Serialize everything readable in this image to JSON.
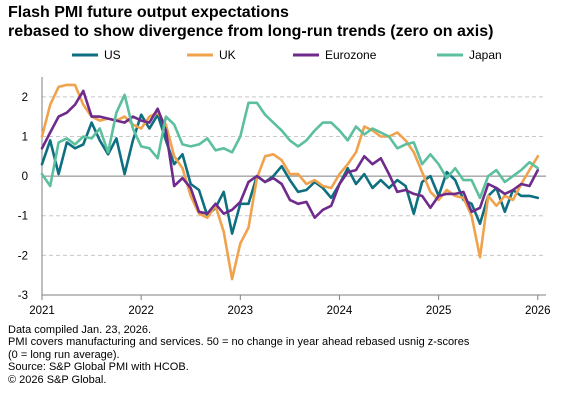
{
  "title_lines": [
    "Flash PMI future output expectations",
    "rebased to show divergence from long-run trends (zero on axis)"
  ],
  "footnotes": [
    "Data compiled Jan. 23, 2026.",
    "PMI covers manufacturing and services. 50 = no change in year ahead rebased usnig z-scores",
    "(0 = long run average).",
    "Source: S&P Global PMI with HCOB.",
    "© 2026 S&P Global."
  ],
  "chart_data": {
    "type": "line",
    "ylim": [
      -3,
      2.5
    ],
    "yticks": [
      2,
      1,
      0,
      -1,
      -2,
      -3
    ],
    "ytick_labels": [
      "2",
      "1",
      "0",
      "-1",
      "-2",
      "-3"
    ],
    "xlim": [
      2021.0,
      2026.083
    ],
    "xticks": [
      2021,
      2022,
      2023,
      2024,
      2025,
      2026
    ],
    "xtick_labels": [
      "2021",
      "2022",
      "2023",
      "2024",
      "2025",
      "2026"
    ],
    "grid": "horizontal dashed",
    "legend_position": "top",
    "series": [
      {
        "name": "US",
        "color": "#0e6f80",
        "x": [
          2021.0,
          2021.083,
          2021.167,
          2021.25,
          2021.333,
          2021.417,
          2021.5,
          2021.583,
          2021.667,
          2021.75,
          2021.833,
          2021.917,
          2022.0,
          2022.083,
          2022.167,
          2022.25,
          2022.333,
          2022.417,
          2022.5,
          2022.583,
          2022.667,
          2022.75,
          2022.833,
          2022.917,
          2023.0,
          2023.083,
          2023.167,
          2023.25,
          2023.333,
          2023.417,
          2023.5,
          2023.583,
          2023.667,
          2023.75,
          2023.833,
          2023.917,
          2024.0,
          2024.083,
          2024.167,
          2024.25,
          2024.333,
          2024.417,
          2024.5,
          2024.583,
          2024.667,
          2024.75,
          2024.833,
          2024.917,
          2025.0,
          2025.083,
          2025.167,
          2025.25,
          2025.333,
          2025.417,
          2025.5,
          2025.583,
          2025.667,
          2025.75,
          2025.833,
          2025.917,
          2026.0
        ],
        "values": [
          0.3,
          0.9,
          0.05,
          0.85,
          0.7,
          0.8,
          1.35,
          0.9,
          0.55,
          0.95,
          0.05,
          0.9,
          1.55,
          1.2,
          1.55,
          0.9,
          0.3,
          0.55,
          -0.2,
          -0.35,
          -1.0,
          -0.8,
          -0.4,
          -1.45,
          -0.7,
          -0.7,
          0.0,
          -0.15,
          0.0,
          0.25,
          -0.1,
          -0.4,
          -0.35,
          -0.15,
          -0.3,
          -0.55,
          -0.2,
          0.2,
          -0.2,
          0.05,
          -0.3,
          -0.1,
          -0.3,
          -0.1,
          -0.25,
          -0.95,
          -0.15,
          0.0,
          -0.5,
          0.1,
          -0.1,
          -0.6,
          -0.7,
          -1.2,
          -0.5,
          -0.3,
          -0.9,
          -0.35,
          -0.5,
          -0.5,
          -0.55
        ]
      },
      {
        "name": "UK",
        "color": "#f0a24c",
        "x": [
          2021.0,
          2021.083,
          2021.167,
          2021.25,
          2021.333,
          2021.417,
          2021.5,
          2021.583,
          2021.667,
          2021.75,
          2021.833,
          2021.917,
          2022.0,
          2022.083,
          2022.167,
          2022.25,
          2022.333,
          2022.417,
          2022.5,
          2022.583,
          2022.667,
          2022.75,
          2022.833,
          2022.917,
          2023.0,
          2023.083,
          2023.167,
          2023.25,
          2023.333,
          2023.417,
          2023.5,
          2023.583,
          2023.667,
          2023.75,
          2023.833,
          2023.917,
          2024.0,
          2024.083,
          2024.167,
          2024.25,
          2024.333,
          2024.417,
          2024.5,
          2024.583,
          2024.667,
          2024.75,
          2024.833,
          2024.917,
          2025.0,
          2025.083,
          2025.167,
          2025.25,
          2025.333,
          2025.417,
          2025.5,
          2025.583,
          2025.667,
          2025.75,
          2025.833,
          2025.917,
          2026.0
        ],
        "values": [
          1.0,
          1.8,
          2.25,
          2.3,
          2.3,
          1.8,
          1.5,
          1.4,
          1.45,
          1.4,
          1.5,
          1.3,
          1.2,
          1.5,
          1.6,
          1.3,
          0.5,
          0.2,
          -0.5,
          -0.95,
          -1.05,
          -0.75,
          -1.4,
          -2.6,
          -1.7,
          -1.3,
          -0.05,
          0.5,
          0.55,
          0.4,
          0.05,
          0.05,
          -0.2,
          -0.1,
          -0.25,
          -0.3,
          0.05,
          0.3,
          0.6,
          1.25,
          1.15,
          1.0,
          1.0,
          1.1,
          0.9,
          0.6,
          0.1,
          -0.4,
          -0.6,
          -0.35,
          -0.5,
          -0.55,
          -1.0,
          -2.05,
          -0.5,
          -0.75,
          -0.5,
          -0.6,
          -0.2,
          0.15,
          0.5
        ]
      },
      {
        "name": "Eurozone",
        "color": "#6e2b8b",
        "x": [
          2021.0,
          2021.083,
          2021.167,
          2021.25,
          2021.333,
          2021.417,
          2021.5,
          2021.583,
          2021.667,
          2021.75,
          2021.833,
          2021.917,
          2022.0,
          2022.083,
          2022.167,
          2022.25,
          2022.333,
          2022.417,
          2022.5,
          2022.583,
          2022.667,
          2022.75,
          2022.833,
          2022.917,
          2023.0,
          2023.083,
          2023.167,
          2023.25,
          2023.333,
          2023.417,
          2023.5,
          2023.583,
          2023.667,
          2023.75,
          2023.833,
          2023.917,
          2024.0,
          2024.083,
          2024.167,
          2024.25,
          2024.333,
          2024.417,
          2024.5,
          2024.583,
          2024.667,
          2024.75,
          2024.833,
          2024.917,
          2025.0,
          2025.083,
          2025.167,
          2025.25,
          2025.333,
          2025.417,
          2025.5,
          2025.583,
          2025.667,
          2025.75,
          2025.833,
          2025.917,
          2026.0
        ],
        "values": [
          0.7,
          1.1,
          1.5,
          1.6,
          1.8,
          2.15,
          1.5,
          1.5,
          1.45,
          1.4,
          1.35,
          1.5,
          1.4,
          1.35,
          1.7,
          1.15,
          -0.25,
          -0.05,
          -0.3,
          -0.9,
          -0.95,
          -0.7,
          -0.95,
          -0.85,
          -0.65,
          -0.15,
          0.0,
          -0.15,
          -0.05,
          -0.2,
          -0.6,
          -0.7,
          -0.65,
          -1.05,
          -0.85,
          -0.75,
          -0.2,
          0.1,
          0.15,
          0.5,
          0.3,
          0.45,
          0.05,
          -0.4,
          -0.35,
          -0.45,
          -0.5,
          -0.8,
          -0.5,
          -0.45,
          -0.45,
          -0.4,
          -0.9,
          -0.8,
          -0.2,
          -0.3,
          -0.45,
          -0.35,
          -0.2,
          -0.25,
          0.15
        ]
      },
      {
        "name": "Japan",
        "color": "#5cbf9e",
        "x": [
          2021.0,
          2021.083,
          2021.167,
          2021.25,
          2021.333,
          2021.417,
          2021.5,
          2021.583,
          2021.667,
          2021.75,
          2021.833,
          2021.917,
          2022.0,
          2022.083,
          2022.167,
          2022.25,
          2022.333,
          2022.417,
          2022.5,
          2022.583,
          2022.667,
          2022.75,
          2022.833,
          2022.917,
          2023.0,
          2023.083,
          2023.167,
          2023.25,
          2023.333,
          2023.417,
          2023.5,
          2023.583,
          2023.667,
          2023.75,
          2023.833,
          2023.917,
          2024.0,
          2024.083,
          2024.167,
          2024.25,
          2024.333,
          2024.417,
          2024.5,
          2024.583,
          2024.667,
          2024.75,
          2024.833,
          2024.917,
          2025.0,
          2025.083,
          2025.167,
          2025.25,
          2025.333,
          2025.417,
          2025.5,
          2025.583,
          2025.667,
          2025.75,
          2025.833,
          2025.917,
          2026.0
        ],
        "values": [
          0.05,
          -0.25,
          0.85,
          0.95,
          0.8,
          1.0,
          0.95,
          1.2,
          0.6,
          1.6,
          2.05,
          1.2,
          0.75,
          0.7,
          0.45,
          1.5,
          1.3,
          0.8,
          0.75,
          0.8,
          0.95,
          0.65,
          0.7,
          0.6,
          1.0,
          1.85,
          1.85,
          1.55,
          1.35,
          1.15,
          0.9,
          0.75,
          0.9,
          1.15,
          1.35,
          1.35,
          1.15,
          0.9,
          1.25,
          1.05,
          1.2,
          1.1,
          1.0,
          0.7,
          0.8,
          0.85,
          0.3,
          0.55,
          0.3,
          -0.05,
          0.2,
          -0.1,
          -0.1,
          -0.55,
          0.0,
          0.15,
          -0.15,
          0.0,
          0.15,
          0.35,
          0.2
        ]
      }
    ]
  }
}
